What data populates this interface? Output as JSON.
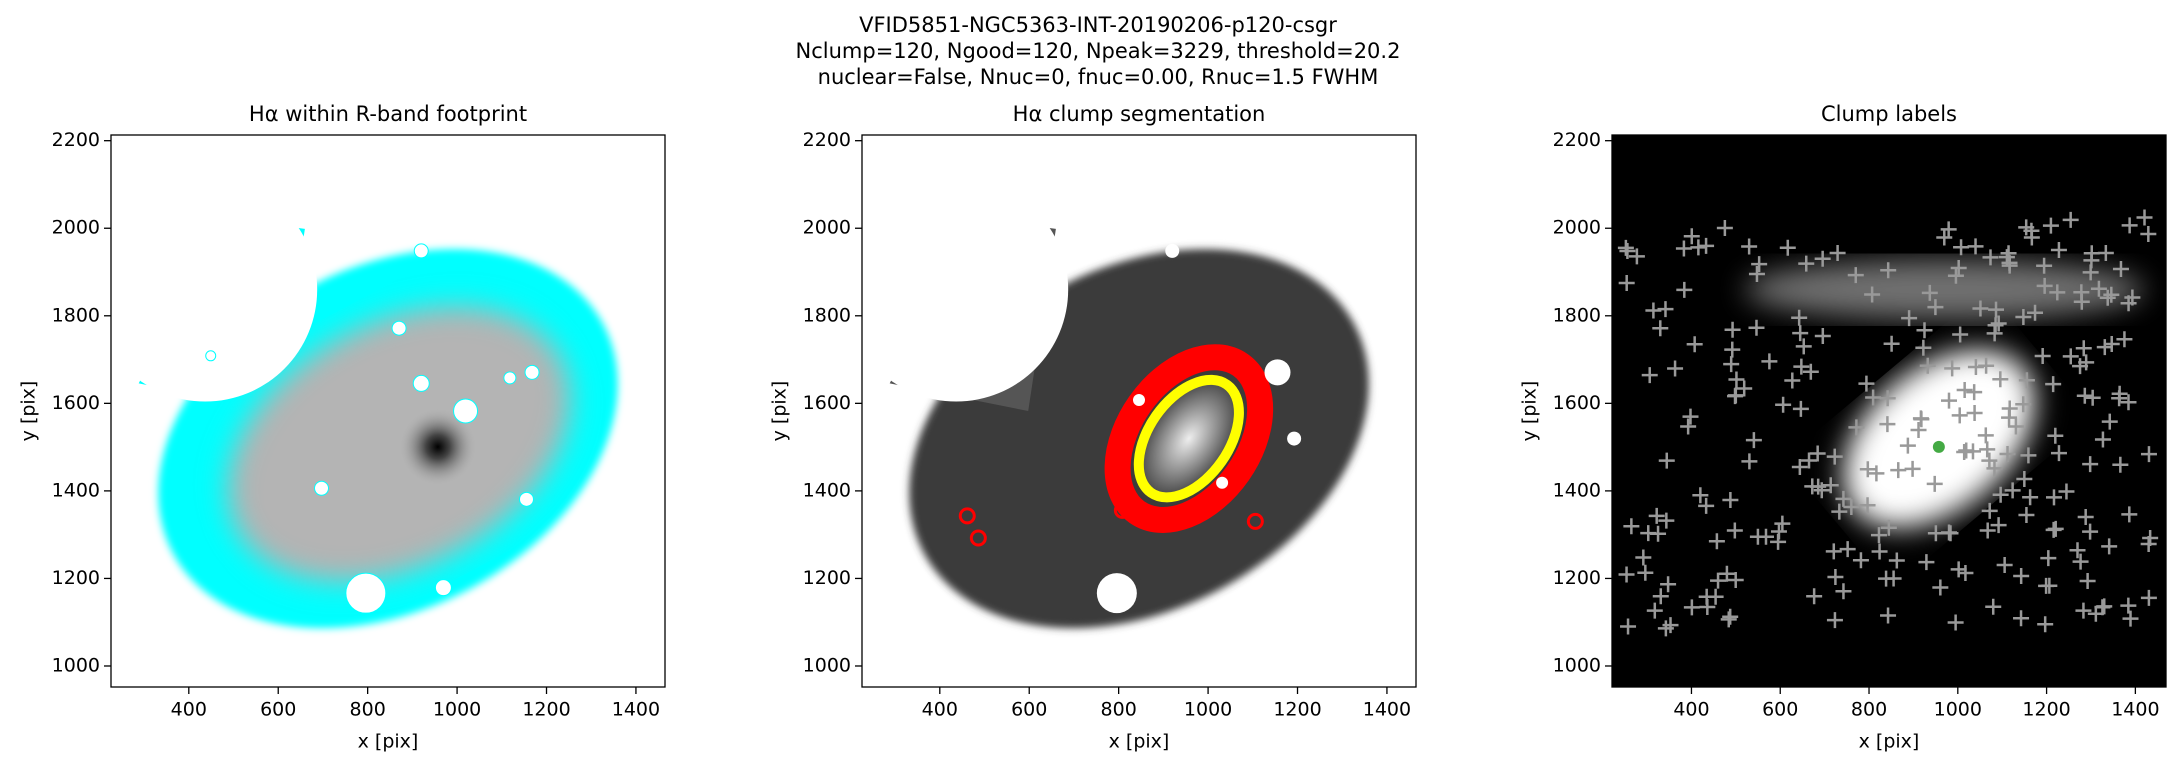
{
  "suptitle": [
    "VFID5851-NGC5363-INT-20190206-p120-csgr",
    "Nclump=120, Ngood=120, Npeak=3229, threshold=20.2",
    "nuclear=False, Nnuc=0, fnuc=0.00, Rnuc=1.5 FWHM"
  ],
  "chart_data": [
    {
      "type": "image",
      "title": "Hα within R-band footprint",
      "xlabel": "x [pix]",
      "ylabel": "y [pix]",
      "xlim": [
        226,
        1465
      ],
      "ylim": [
        952,
        2213
      ],
      "xticks": [
        400,
        600,
        800,
        1000,
        1200,
        1400
      ],
      "yticks": [
        1000,
        1200,
        1400,
        1600,
        1800,
        2000,
        2200
      ]
    },
    {
      "type": "image",
      "title": "Hα clump segmentation",
      "xlabel": "x [pix]",
      "ylabel": "y [pix]",
      "xlim": [
        226,
        1465
      ],
      "ylim": [
        952,
        2213
      ],
      "xticks": [
        400,
        600,
        800,
        1000,
        1200,
        1400
      ],
      "yticks": [
        1000,
        1200,
        1400,
        1600,
        1800,
        2000,
        2200
      ]
    },
    {
      "type": "image",
      "title": "Clump labels",
      "xlabel": "x [pix]",
      "ylabel": "y [pix]",
      "xlim": [
        221,
        1469
      ],
      "ylim": [
        952,
        2213
      ],
      "xticks": [
        400,
        600,
        800,
        1000,
        1200,
        1400
      ],
      "yticks": [
        1000,
        1200,
        1400,
        1600,
        1800,
        2000,
        2200
      ]
    }
  ]
}
